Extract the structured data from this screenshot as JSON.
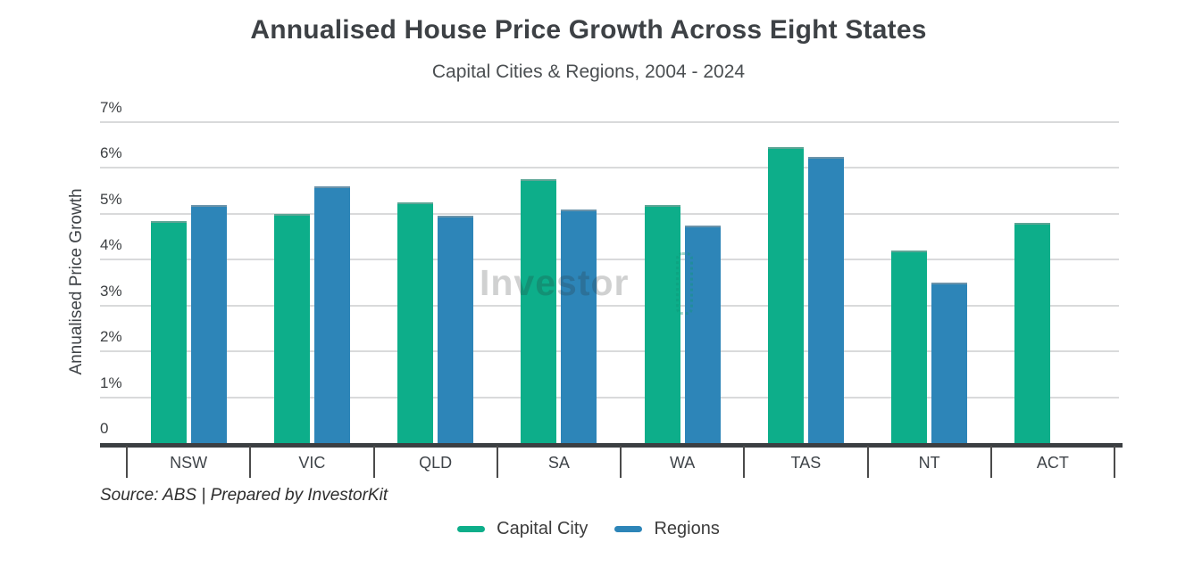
{
  "header": {
    "title": "Annualised House Price Growth Across Eight States",
    "subtitle": "Capital Cities & Regions, 2004 - 2024"
  },
  "source_note": "Source: ABS | Prepared by InvestorKit",
  "watermark": {
    "text": "Investor"
  },
  "colors": {
    "capital_city": "#0dae8a",
    "regions": "#2d85b8",
    "gridline": "#d9dadb",
    "axis": "#3b3f42"
  },
  "chart_data": {
    "type": "bar",
    "title": "Annualised House Price Growth Across Eight States",
    "subtitle": "Capital Cities & Regions, 2004 - 2024",
    "xlabel": "",
    "ylabel": "Annualised Price Growth",
    "categories": [
      "NSW",
      "VIC",
      "QLD",
      "SA",
      "WA",
      "TAS",
      "NT",
      "ACT"
    ],
    "series": [
      {
        "name": "Capital City",
        "color": "#0dae8a",
        "values": [
          4.85,
          5.0,
          5.25,
          5.75,
          5.2,
          6.45,
          4.2,
          4.8
        ]
      },
      {
        "name": "Regions",
        "color": "#2d85b8",
        "values": [
          5.2,
          5.6,
          4.95,
          5.1,
          4.75,
          6.25,
          3.5,
          null
        ]
      }
    ],
    "ylim": [
      0,
      7
    ],
    "ytick_values": [
      7,
      6,
      5,
      4,
      3,
      2,
      1,
      0
    ],
    "ytick_labels": [
      "7%",
      "6%",
      "5%",
      "4%",
      "3%",
      "2%",
      "1%",
      "0"
    ],
    "grid": true,
    "legend_position": "bottom"
  }
}
